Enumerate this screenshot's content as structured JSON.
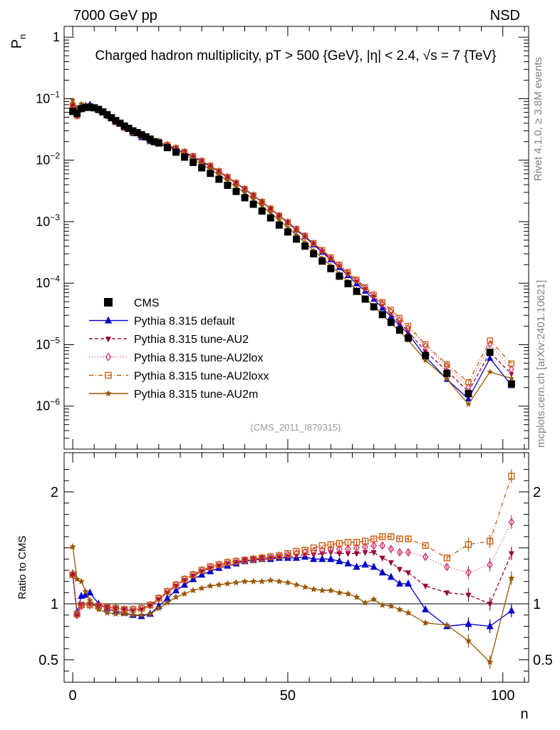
{
  "header": {
    "left_label": "7000 GeV pp",
    "right_label": "NSD"
  },
  "side_labels": {
    "rivet": "Rivet 4.1.0, ≥ 3.8M events",
    "mcplots": "mcplots.cern.ch [arXiv:2401.10621]"
  },
  "chart_data": {
    "type": "line",
    "title": "Charged hadron multiplicity, pT > 500 {GeV}, |η| < 2.4, √s = 7 {TeV}",
    "analysis_tag": "(CMS_2011_I879315)",
    "top_panel": {
      "ylabel": "P_n",
      "yscale": "log",
      "ylim": [
        2e-07,
        1.5
      ],
      "yticks": [
        {
          "v": 1,
          "label": "1"
        },
        {
          "v": 0.1,
          "label": "10^-1"
        },
        {
          "v": 0.01,
          "label": "10^-2"
        },
        {
          "v": 0.001,
          "label": "10^-3"
        },
        {
          "v": 0.0001,
          "label": "10^-4"
        },
        {
          "v": 1e-05,
          "label": "10^-5"
        },
        {
          "v": 1e-06,
          "label": "10^-6"
        }
      ]
    },
    "ratio_panel": {
      "ylabel": "Ratio to CMS",
      "ylim": [
        0.3,
        2.35
      ],
      "yticks": [
        {
          "v": 0.5,
          "label": "0.5"
        },
        {
          "v": 1,
          "label": "1"
        },
        {
          "v": 2,
          "label": "2"
        }
      ]
    },
    "xlabel": "n",
    "xlim": [
      -2,
      106
    ],
    "xticks": [
      {
        "v": 0,
        "label": "0"
      },
      {
        "v": 50,
        "label": "50"
      },
      {
        "v": 100,
        "label": "100"
      }
    ],
    "legend_position": "bottom-left",
    "reference": {
      "name": "CMS",
      "x": [
        0,
        1,
        2,
        3,
        4,
        5,
        6,
        7,
        8,
        9,
        10,
        11,
        12,
        13,
        14,
        15,
        16,
        17,
        18,
        19,
        20,
        22,
        24,
        26,
        28,
        30,
        32,
        34,
        36,
        38,
        40,
        42,
        44,
        46,
        48,
        50,
        52,
        54,
        56,
        58,
        60,
        62,
        64,
        66,
        68,
        70,
        72,
        74,
        76,
        78,
        82,
        87,
        92,
        97,
        102
      ],
      "y": [
        0.062,
        0.058,
        0.069,
        0.072,
        0.073,
        0.071,
        0.067,
        0.061,
        0.055,
        0.049,
        0.044,
        0.04,
        0.036,
        0.033,
        0.03,
        0.028,
        0.026,
        0.024,
        0.022,
        0.02,
        0.019,
        0.016,
        0.0135,
        0.0112,
        0.0092,
        0.0075,
        0.0061,
        0.0049,
        0.0039,
        0.0031,
        0.00245,
        0.00192,
        0.00149,
        0.00115,
        0.00088,
        0.00068,
        0.00052,
        0.0004,
        0.0003,
        0.000228,
        0.000172,
        0.00013,
        9.8e-05,
        7.35e-05,
        5.5e-05,
        4.12e-05,
        3.08e-05,
        2.3e-05,
        1.72e-05,
        1.28e-05,
        6.7e-06,
        3.4e-06,
        1.6e-06,
        7.5e-06,
        2.3e-06
      ]
    },
    "series": [
      {
        "name": "Pythia 8.315 default",
        "color": "#0000cc",
        "dash": "",
        "marker": "triangle-up",
        "x": [
          0,
          1,
          2,
          3,
          4,
          6,
          8,
          10,
          12,
          14,
          16,
          18,
          20,
          22,
          24,
          26,
          28,
          30,
          32,
          34,
          36,
          38,
          40,
          42,
          44,
          46,
          48,
          50,
          52,
          54,
          56,
          58,
          60,
          62,
          64,
          66,
          68,
          70,
          72,
          74,
          76,
          78,
          82,
          87,
          92,
          97,
          102
        ],
        "y": [
          1.27,
          0.92,
          1.07,
          1.08,
          1.1,
          1.0,
          0.96,
          0.93,
          0.92,
          0.9,
          0.89,
          0.91,
          0.98,
          1.05,
          1.12,
          1.17,
          1.22,
          1.26,
          1.29,
          1.32,
          1.34,
          1.36,
          1.38,
          1.39,
          1.4,
          1.4,
          1.41,
          1.41,
          1.41,
          1.42,
          1.4,
          1.4,
          1.4,
          1.38,
          1.36,
          1.33,
          1.35,
          1.33,
          1.28,
          1.24,
          1.18,
          1.18,
          0.95,
          0.8,
          0.82,
          0.8,
          0.94
        ]
      },
      {
        "name": "Pythia 8.315 tune-AU2",
        "color": "#990033",
        "dash": "5,3",
        "marker": "triangle-down",
        "x": [
          0,
          1,
          2,
          4,
          6,
          8,
          10,
          12,
          14,
          16,
          18,
          20,
          22,
          24,
          26,
          28,
          30,
          32,
          34,
          36,
          38,
          40,
          42,
          44,
          46,
          48,
          50,
          52,
          54,
          56,
          58,
          60,
          62,
          64,
          66,
          68,
          70,
          72,
          74,
          76,
          78,
          82,
          87,
          92,
          97,
          102
        ],
        "y": [
          1.26,
          0.9,
          0.99,
          1.0,
          0.98,
          0.97,
          0.96,
          0.95,
          0.94,
          0.95,
          0.98,
          1.04,
          1.1,
          1.16,
          1.21,
          1.25,
          1.29,
          1.32,
          1.34,
          1.36,
          1.37,
          1.39,
          1.4,
          1.41,
          1.41,
          1.42,
          1.42,
          1.43,
          1.44,
          1.44,
          1.45,
          1.46,
          1.45,
          1.45,
          1.45,
          1.46,
          1.46,
          1.41,
          1.37,
          1.31,
          1.28,
          1.16,
          1.1,
          1.08,
          1.0,
          1.45
        ]
      },
      {
        "name": "Pythia 8.315 tune-AU2lox",
        "color": "#cc3366",
        "dash": "1,3",
        "marker": "diamond",
        "x": [
          0,
          1,
          2,
          4,
          6,
          8,
          10,
          12,
          14,
          16,
          18,
          20,
          22,
          24,
          26,
          28,
          30,
          32,
          34,
          36,
          38,
          40,
          42,
          44,
          46,
          48,
          50,
          52,
          54,
          56,
          58,
          60,
          62,
          64,
          66,
          68,
          70,
          72,
          74,
          76,
          78,
          82,
          87,
          92,
          97,
          102
        ],
        "y": [
          1.26,
          0.9,
          0.98,
          0.99,
          0.98,
          0.97,
          0.96,
          0.95,
          0.95,
          0.96,
          0.99,
          1.05,
          1.11,
          1.17,
          1.22,
          1.26,
          1.3,
          1.33,
          1.35,
          1.37,
          1.38,
          1.39,
          1.4,
          1.41,
          1.42,
          1.43,
          1.44,
          1.45,
          1.46,
          1.47,
          1.48,
          1.49,
          1.49,
          1.49,
          1.5,
          1.51,
          1.52,
          1.52,
          1.49,
          1.46,
          1.46,
          1.42,
          1.33,
          1.28,
          1.35,
          1.73
        ]
      },
      {
        "name": "Pythia 8.315 tune-AU2loxx",
        "color": "#cc5500",
        "dash": "6,3,1,3",
        "marker": "square-open",
        "x": [
          0,
          1,
          2,
          4,
          6,
          8,
          10,
          12,
          14,
          16,
          18,
          20,
          22,
          24,
          26,
          28,
          30,
          32,
          34,
          36,
          38,
          40,
          42,
          44,
          46,
          48,
          50,
          52,
          54,
          56,
          58,
          60,
          62,
          64,
          66,
          68,
          70,
          72,
          74,
          76,
          78,
          82,
          87,
          92,
          97,
          102
        ],
        "y": [
          1.26,
          0.91,
          0.99,
          0.99,
          0.98,
          0.97,
          0.96,
          0.95,
          0.95,
          0.96,
          0.99,
          1.05,
          1.11,
          1.17,
          1.22,
          1.26,
          1.3,
          1.33,
          1.35,
          1.37,
          1.38,
          1.39,
          1.4,
          1.41,
          1.42,
          1.43,
          1.45,
          1.47,
          1.48,
          1.5,
          1.52,
          1.53,
          1.54,
          1.55,
          1.55,
          1.56,
          1.58,
          1.6,
          1.6,
          1.58,
          1.58,
          1.52,
          1.41,
          1.53,
          1.56,
          2.14
        ]
      },
      {
        "name": "Pythia 8.315 tune-AU2m",
        "color": "#995500",
        "dash": "",
        "marker": "star",
        "x": [
          0,
          1,
          2,
          3,
          4,
          6,
          8,
          10,
          12,
          14,
          16,
          18,
          20,
          22,
          24,
          26,
          28,
          30,
          32,
          34,
          36,
          38,
          40,
          42,
          44,
          46,
          48,
          50,
          52,
          54,
          56,
          58,
          60,
          62,
          64,
          66,
          68,
          70,
          72,
          74,
          76,
          78,
          82,
          87,
          92,
          97,
          102
        ],
        "y": [
          1.51,
          1.22,
          1.2,
          1.11,
          1.03,
          0.95,
          0.92,
          0.91,
          0.91,
          0.9,
          0.9,
          0.91,
          0.96,
          1.01,
          1.06,
          1.09,
          1.12,
          1.14,
          1.16,
          1.17,
          1.18,
          1.19,
          1.2,
          1.2,
          1.2,
          1.21,
          1.2,
          1.19,
          1.17,
          1.15,
          1.13,
          1.12,
          1.12,
          1.1,
          1.09,
          1.06,
          1.01,
          1.04,
          0.99,
          0.98,
          0.95,
          0.92,
          0.83,
          0.81,
          0.67,
          0.48,
          1.23
        ]
      }
    ]
  }
}
